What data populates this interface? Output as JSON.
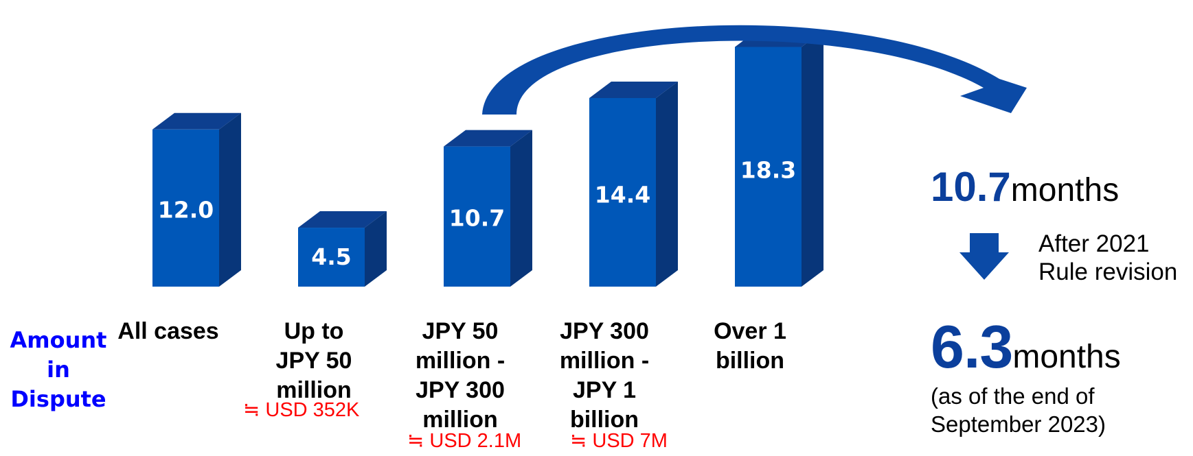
{
  "chart_data": {
    "type": "bar",
    "axis_title": "Amount\nin\nDispute",
    "categories": [
      "All cases",
      "Up to\nJPY 50\nmillion",
      "JPY 50\nmillion -\nJPY 300\nmillion",
      "JPY 300\nmillion -\nJPY 1\nbillion",
      "Over 1\nbillion"
    ],
    "values": [
      12.0,
      4.5,
      10.7,
      14.4,
      18.3
    ],
    "value_labels": [
      "12.0",
      "4.5",
      "10.7",
      "14.4",
      "18.3"
    ],
    "usd_notes": [
      "",
      "≒ USD 352K",
      "≒ USD 2.1M",
      "≒ USD 7M",
      ""
    ],
    "bar_colors": {
      "front": "#0057b8",
      "top": "#0d3f8f",
      "side": "#08367a"
    },
    "label_color": "#ffffff",
    "arrow_color": "#0b4aa6"
  },
  "summary": {
    "before_value": "10.7",
    "before_unit": "months",
    "revision_note": "After 2021\nRule revision",
    "after_value": "6.3",
    "after_unit": "months",
    "as_of": "(as of the end of\nSeptember 2023)",
    "highlight_color": "#0b3f9c",
    "down_arrow_icon": "down-arrow-icon"
  }
}
